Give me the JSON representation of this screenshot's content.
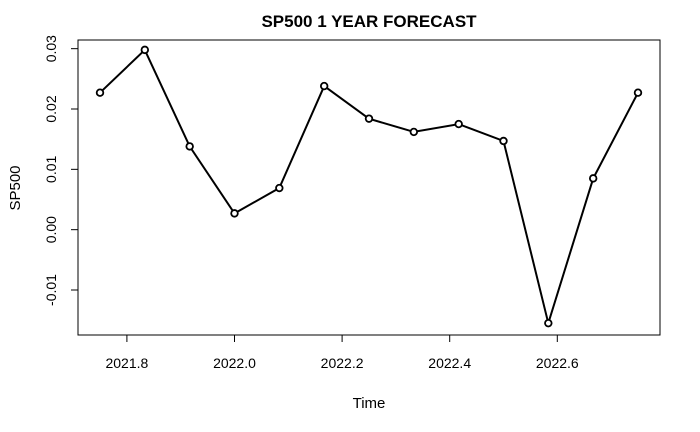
{
  "chart_data": {
    "type": "line",
    "title": "SP500 1 YEAR FORECAST",
    "xlabel": "Time",
    "ylabel": "SP500",
    "xlim": [
      1021.7289,
      2022.7875
    ],
    "ylim": [
      -0.0175,
      0.0315
    ],
    "x_ticks": [
      2021.8,
      2022.0,
      2022.2,
      2022.4,
      2022.6
    ],
    "x_tick_labels": [
      "2021.8",
      "2022.0",
      "2022.2",
      "2022.4",
      "2022.6"
    ],
    "y_ticks": [
      -0.01,
      0.0,
      0.01,
      0.02,
      0.03
    ],
    "y_tick_labels": [
      "-0.01",
      "0.00",
      "0.01",
      "0.02",
      "0.03"
    ],
    "grid": false,
    "series": [
      {
        "x": [
          2021.75,
          2021.8333,
          2021.9167,
          2022.0,
          2022.0833,
          2022.1667,
          2022.25,
          2022.3333,
          2022.4167,
          2022.5,
          2022.5833,
          2022.6667,
          2022.75
        ],
        "values": [
          0.0227,
          0.0298,
          0.0138,
          0.0027,
          0.0069,
          0.0238,
          0.0184,
          0.0162,
          0.0175,
          0.0147,
          -0.0155,
          0.0085,
          0.0227
        ]
      }
    ]
  }
}
